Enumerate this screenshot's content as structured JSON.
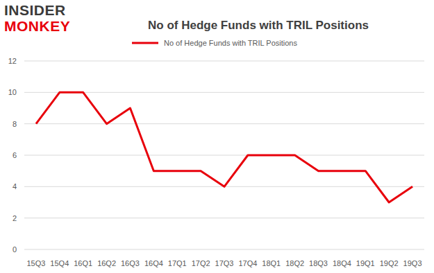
{
  "chart_data": {
    "type": "line",
    "title": "No of Hedge Funds with TRIL Positions",
    "annotations": [
      "INSIDER",
      "MONKEY"
    ],
    "categories": [
      "15Q3",
      "15Q4",
      "16Q1",
      "16Q2",
      "16Q3",
      "16Q4",
      "17Q1",
      "17Q2",
      "17Q3",
      "17Q4",
      "18Q1",
      "18Q2",
      "18Q3",
      "18Q4",
      "19Q1",
      "19Q2",
      "19Q3"
    ],
    "series": [
      {
        "name": "No of Hedge Funds with TRIL Positions",
        "color": "#e8000b",
        "values": [
          8,
          10,
          10,
          8,
          9,
          5,
          5,
          5,
          4,
          6,
          6,
          6,
          5,
          5,
          5,
          3,
          4
        ]
      }
    ],
    "ylim": [
      0,
      12
    ],
    "yticks": [
      0,
      2,
      4,
      6,
      8,
      10,
      12
    ],
    "grid": true,
    "legend": "top"
  }
}
